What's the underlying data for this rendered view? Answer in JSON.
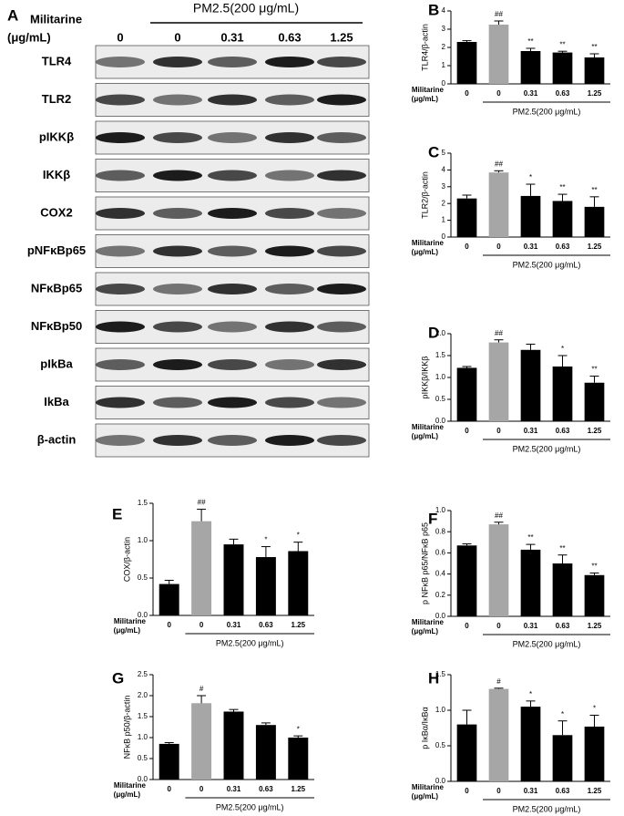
{
  "blot": {
    "panel": "A",
    "row_label": "Militarine",
    "row_unit": "(μg/mL)",
    "pm_label": "PM2.5(200 μg/mL)",
    "doses": [
      "0",
      "0",
      "0.31",
      "0.63",
      "1.25"
    ],
    "proteins": [
      "TLR4",
      "TLR2",
      "pIKKβ",
      "IKKβ",
      "COX2",
      "pNFκBp65",
      "NFκBp65",
      "NFκBp50",
      "pIkBa",
      "IkBa",
      "β-actin"
    ]
  },
  "chart_data": [
    {
      "type": "bar",
      "panel": "B",
      "ylabel": "TLR4/β-actin",
      "row_label": "Militarine",
      "row_unit": "(μg/mL)",
      "pm_label": "PM2.5(200 μg/mL)",
      "categories": [
        "0",
        "0",
        "0.31",
        "0.63",
        "1.25"
      ],
      "values": [
        2.3,
        3.25,
        1.8,
        1.72,
        1.45
      ],
      "errors": [
        0.07,
        0.2,
        0.15,
        0.07,
        0.2
      ],
      "annotations": [
        null,
        "##",
        "**",
        "**",
        "**"
      ],
      "colors": [
        "#000000",
        "#a6a6a6",
        "#000000",
        "#000000",
        "#000000"
      ],
      "ylim": [
        0,
        4
      ],
      "yticks": [
        0,
        1,
        2,
        3,
        4
      ]
    },
    {
      "type": "bar",
      "panel": "C",
      "ylabel": "TLR2/β-actin",
      "row_label": "Militarine",
      "row_unit": "(μg/mL)",
      "pm_label": "PM2.5(200 μg/mL)",
      "categories": [
        "0",
        "0",
        "0.31",
        "0.63",
        "1.25"
      ],
      "values": [
        2.3,
        3.85,
        2.45,
        2.15,
        1.8
      ],
      "errors": [
        0.2,
        0.1,
        0.7,
        0.4,
        0.6
      ],
      "annotations": [
        null,
        "##",
        "*",
        "**",
        "**"
      ],
      "colors": [
        "#000000",
        "#a6a6a6",
        "#000000",
        "#000000",
        "#000000"
      ],
      "ylim": [
        0,
        5
      ],
      "yticks": [
        0,
        1,
        2,
        3,
        4,
        5
      ]
    },
    {
      "type": "bar",
      "panel": "D",
      "ylabel": "pIKKβ/IKKβ",
      "row_label": "Militarine",
      "row_unit": "(μg/mL)",
      "pm_label": "PM2.5(200 μg/mL)",
      "categories": [
        "0",
        "0",
        "0.31",
        "0.63",
        "1.25"
      ],
      "values": [
        1.22,
        1.8,
        1.63,
        1.25,
        0.88
      ],
      "errors": [
        0.03,
        0.06,
        0.13,
        0.25,
        0.15
      ],
      "annotations": [
        null,
        "##",
        null,
        "*",
        "**"
      ],
      "colors": [
        "#000000",
        "#a6a6a6",
        "#000000",
        "#000000",
        "#000000"
      ],
      "ylim": [
        0,
        2
      ],
      "yticks": [
        {
          "value": 0,
          "label": "0.0"
        },
        0.5,
        {
          "value": 1,
          "label": "1.0"
        },
        1.5,
        {
          "value": 2,
          "label": "2.0"
        }
      ]
    },
    {
      "type": "bar",
      "panel": "E",
      "ylabel": "COX/β-actin",
      "row_label": "Militarine",
      "row_unit": "(μg/mL)",
      "pm_label": "PM2.5(200 μg/mL)",
      "categories": [
        "0",
        "0",
        "0.31",
        "0.63",
        "1.25"
      ],
      "values": [
        0.42,
        1.26,
        0.95,
        0.78,
        0.86
      ],
      "errors": [
        0.05,
        0.16,
        0.07,
        0.14,
        0.12
      ],
      "annotations": [
        null,
        "##",
        null,
        "*",
        "*"
      ],
      "colors": [
        "#000000",
        "#a6a6a6",
        "#000000",
        "#000000",
        "#000000"
      ],
      "ylim": [
        0,
        1.5
      ],
      "yticks": [
        {
          "value": 0,
          "label": "0.0"
        },
        0.5,
        {
          "value": 1,
          "label": "1.0"
        },
        1.5
      ]
    },
    {
      "type": "bar",
      "panel": "F",
      "ylabel": "p NFκB p65/NFκB p65",
      "row_label": "Militarine",
      "row_unit": "(μg/mL)",
      "pm_label": "PM2.5(200 μg/mL)",
      "categories": [
        "0",
        "0",
        "0.31",
        "0.63",
        "1.25"
      ],
      "values": [
        0.67,
        0.87,
        0.63,
        0.5,
        0.39
      ],
      "errors": [
        0.015,
        0.02,
        0.05,
        0.08,
        0.02
      ],
      "annotations": [
        null,
        "##",
        "**",
        "**",
        "**"
      ],
      "colors": [
        "#000000",
        "#a6a6a6",
        "#000000",
        "#000000",
        "#000000"
      ],
      "ylim": [
        0,
        1
      ],
      "yticks": [
        {
          "value": 0,
          "label": "0.0"
        },
        0.2,
        0.4,
        0.6,
        0.8,
        {
          "value": 1,
          "label": "1.0"
        }
      ]
    },
    {
      "type": "bar",
      "panel": "G",
      "ylabel": "NFκB p50/β-actin",
      "row_label": "Militarine",
      "row_unit": "(μg/mL)",
      "pm_label": "PM2.5(200 μg/mL)",
      "categories": [
        "0",
        "0",
        "0.31",
        "0.63",
        "1.25"
      ],
      "values": [
        0.85,
        1.82,
        1.62,
        1.3,
        1.0
      ],
      "errors": [
        0.03,
        0.18,
        0.05,
        0.05,
        0.04
      ],
      "annotations": [
        null,
        "#",
        null,
        null,
        "*"
      ],
      "colors": [
        "#000000",
        "#a6a6a6",
        "#000000",
        "#000000",
        "#000000"
      ],
      "ylim": [
        0,
        2.5
      ],
      "yticks": [
        {
          "value": 0,
          "label": "0.0"
        },
        0.5,
        {
          "value": 1,
          "label": "1.0"
        },
        1.5,
        {
          "value": 2,
          "label": "2.0"
        },
        2.5
      ]
    },
    {
      "type": "bar",
      "panel": "H",
      "ylabel": "p IκBα/IκBα",
      "row_label": "Militarine",
      "row_unit": "(μg/mL)",
      "pm_label": "PM2.5(200 μg/mL)",
      "categories": [
        "0",
        "0",
        "0.31",
        "0.63",
        "1.25"
      ],
      "values": [
        0.8,
        1.3,
        1.05,
        0.65,
        0.77
      ],
      "errors": [
        0.2,
        0.01,
        0.08,
        0.2,
        0.16
      ],
      "annotations": [
        null,
        "#",
        "*",
        "*",
        "*"
      ],
      "colors": [
        "#000000",
        "#a6a6a6",
        "#000000",
        "#000000",
        "#000000"
      ],
      "ylim": [
        0,
        1.5
      ],
      "yticks": [
        {
          "value": 0,
          "label": "0.0"
        },
        0.5,
        {
          "value": 1,
          "label": "1.0"
        },
        1.5
      ]
    }
  ]
}
